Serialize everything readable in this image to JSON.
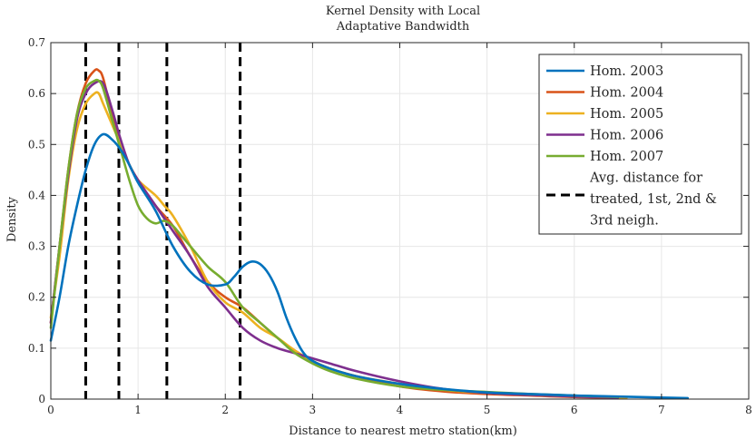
{
  "chart_data": {
    "type": "line",
    "title_lines": [
      "Kernel Density with Local",
      "Adaptative Bandwidth"
    ],
    "xlabel": "Distance to nearest metro station(km)",
    "ylabel": "Density",
    "xlim": [
      0,
      8
    ],
    "ylim": [
      0,
      0.7
    ],
    "xticks": [
      "0",
      "1",
      "2",
      "3",
      "4",
      "5",
      "6",
      "7",
      "8"
    ],
    "yticks": [
      "0",
      "0.1",
      "0.2",
      "0.3",
      "0.4",
      "0.5",
      "0.6",
      "0.7"
    ],
    "grid": true,
    "legend_position": "top-right",
    "series": [
      {
        "name": "Hom. 2003",
        "color": "#0072BD",
        "x": [
          0,
          0.1,
          0.2,
          0.3,
          0.4,
          0.5,
          0.6,
          0.7,
          0.8,
          0.9,
          1.0,
          1.2,
          1.4,
          1.6,
          1.8,
          2.0,
          2.1,
          2.2,
          2.3,
          2.4,
          2.5,
          2.6,
          2.7,
          2.8,
          2.9,
          3.0,
          3.2,
          3.5,
          4.0,
          4.5,
          5.0,
          5.5,
          6.0,
          6.5,
          7.0,
          7.3
        ],
        "y": [
          0.115,
          0.2,
          0.3,
          0.38,
          0.45,
          0.5,
          0.52,
          0.51,
          0.49,
          0.46,
          0.425,
          0.37,
          0.3,
          0.25,
          0.225,
          0.225,
          0.24,
          0.26,
          0.27,
          0.265,
          0.245,
          0.21,
          0.16,
          0.12,
          0.09,
          0.075,
          0.06,
          0.045,
          0.03,
          0.02,
          0.013,
          0.01,
          0.007,
          0.005,
          0.003,
          0.002
        ]
      },
      {
        "name": "Hom. 2004",
        "color": "#D95319",
        "x": [
          0,
          0.1,
          0.2,
          0.3,
          0.4,
          0.5,
          0.55,
          0.6,
          0.7,
          0.8,
          0.9,
          1.0,
          1.2,
          1.4,
          1.6,
          1.8,
          2.0,
          2.2,
          2.4,
          2.6,
          2.8,
          3.0,
          3.2,
          3.5,
          4.0,
          4.5,
          5.0,
          5.5,
          6.0,
          6.5
        ],
        "y": [
          0.15,
          0.3,
          0.45,
          0.56,
          0.62,
          0.645,
          0.645,
          0.63,
          0.56,
          0.5,
          0.46,
          0.43,
          0.38,
          0.34,
          0.28,
          0.23,
          0.2,
          0.18,
          0.15,
          0.12,
          0.095,
          0.075,
          0.06,
          0.045,
          0.025,
          0.015,
          0.01,
          0.007,
          0.004,
          0.003
        ]
      },
      {
        "name": "Hom. 2005",
        "color": "#EDB120",
        "x": [
          0,
          0.1,
          0.2,
          0.3,
          0.4,
          0.5,
          0.55,
          0.6,
          0.7,
          0.8,
          0.9,
          1.0,
          1.2,
          1.3,
          1.4,
          1.6,
          1.8,
          2.0,
          2.2,
          2.4,
          2.6,
          2.8,
          3.0,
          3.2,
          3.5,
          4.0,
          4.5,
          5.0,
          5.5,
          6.0,
          6.6
        ],
        "y": [
          0.16,
          0.28,
          0.43,
          0.53,
          0.58,
          0.6,
          0.6,
          0.58,
          0.54,
          0.5,
          0.46,
          0.43,
          0.4,
          0.38,
          0.36,
          0.3,
          0.23,
          0.19,
          0.17,
          0.14,
          0.12,
          0.095,
          0.075,
          0.06,
          0.045,
          0.03,
          0.018,
          0.012,
          0.008,
          0.005,
          0.003
        ]
      },
      {
        "name": "Hom. 2006",
        "color": "#7E2F8E",
        "x": [
          0,
          0.1,
          0.2,
          0.3,
          0.4,
          0.5,
          0.6,
          0.7,
          0.8,
          0.9,
          1.0,
          1.2,
          1.4,
          1.6,
          1.8,
          2.0,
          2.2,
          2.4,
          2.6,
          2.8,
          3.0,
          3.2,
          3.5,
          4.0,
          4.5,
          5.0,
          5.5,
          6.0,
          6.5
        ],
        "y": [
          0.15,
          0.3,
          0.44,
          0.55,
          0.6,
          0.62,
          0.62,
          0.57,
          0.51,
          0.46,
          0.43,
          0.38,
          0.33,
          0.28,
          0.22,
          0.18,
          0.14,
          0.115,
          0.1,
          0.09,
          0.08,
          0.07,
          0.055,
          0.035,
          0.02,
          0.012,
          0.008,
          0.005,
          0.003
        ]
      },
      {
        "name": "Hom. 2007",
        "color": "#77AC30",
        "x": [
          0,
          0.1,
          0.2,
          0.3,
          0.4,
          0.5,
          0.55,
          0.6,
          0.7,
          0.8,
          0.9,
          1.0,
          1.1,
          1.2,
          1.3,
          1.4,
          1.5,
          1.6,
          1.8,
          2.0,
          2.2,
          2.4,
          2.6,
          2.8,
          3.0,
          3.2,
          3.5,
          4.0,
          4.5,
          5.0,
          5.5,
          6.0,
          6.5
        ],
        "y": [
          0.14,
          0.3,
          0.45,
          0.56,
          0.61,
          0.625,
          0.625,
          0.61,
          0.55,
          0.49,
          0.43,
          0.38,
          0.355,
          0.345,
          0.35,
          0.34,
          0.32,
          0.3,
          0.26,
          0.23,
          0.18,
          0.15,
          0.12,
          0.09,
          0.07,
          0.055,
          0.04,
          0.025,
          0.018,
          0.014,
          0.01,
          0.007,
          0.004
        ]
      }
    ],
    "reference_lines": {
      "label_lines": [
        "Avg. distance for",
        "treated, 1st, 2nd &",
        "3rd neigh."
      ],
      "color": "#000000",
      "x": [
        0.4,
        0.78,
        1.33,
        2.17
      ]
    }
  }
}
